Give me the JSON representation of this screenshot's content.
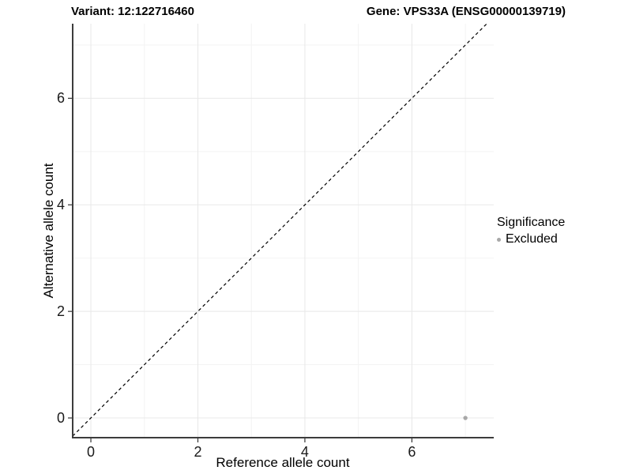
{
  "chart_data": {
    "type": "scatter",
    "title_left": "Variant: 12:122716460",
    "title_right": "Gene: VPS33A (ENSG00000139719)",
    "xlabel": "Reference allele count",
    "ylabel": "Alternative allele count",
    "xlim": [
      -0.34,
      7.53
    ],
    "ylim": [
      -0.37,
      7.4
    ],
    "x_major_ticks": [
      0,
      2,
      4,
      6
    ],
    "y_major_ticks": [
      0,
      2,
      4,
      6
    ],
    "x_minor_gridlines": [
      1,
      3,
      5,
      7
    ],
    "y_minor_gridlines": [
      1,
      3,
      5,
      7
    ],
    "grid": "major and minor gridlines on white background",
    "identity_line": {
      "slope": 1,
      "intercept": 0,
      "style": "dashed",
      "color": "#000000"
    },
    "series": [
      {
        "name": "Excluded",
        "color": "#a8a8a8",
        "marker": "circle",
        "points": [
          [
            7,
            0
          ]
        ]
      }
    ],
    "legend": {
      "title": "Significance",
      "position": "right",
      "entries": [
        {
          "label": "Excluded",
          "color": "#a8a8a8",
          "marker": "circle"
        }
      ]
    }
  },
  "colors": {
    "background": "#ffffff",
    "grid_major": "#e8e8e8",
    "grid_minor": "#f3f3f3",
    "axis_line": "#3c3c3c",
    "tick_mark": "#333333",
    "text": "#000000",
    "point": "#a8a8a8"
  }
}
